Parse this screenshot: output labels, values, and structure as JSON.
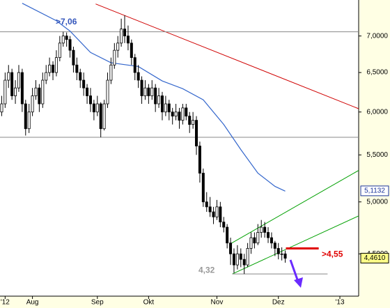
{
  "chart_data": {
    "type": "candlestick",
    "log_scale": true,
    "up_color": "#ffffff",
    "down_color": "#000000",
    "xlim": [
      -0.5,
      104.5
    ],
    "ylim": [
      4.13,
      7.53
    ],
    "xticks": [
      {
        "value": 1,
        "label": "'12"
      },
      {
        "value": 9,
        "label": "Aug"
      },
      {
        "value": 28,
        "label": "Sep"
      },
      {
        "value": 43,
        "label": "Okt"
      },
      {
        "value": 63,
        "label": "Nov"
      },
      {
        "value": 81,
        "label": "Dez"
      },
      {
        "value": 99,
        "label": "'13"
      }
    ],
    "yticks": [
      {
        "value": 4.5,
        "label": "4,5000"
      },
      {
        "value": 5,
        "label": "5,0000"
      },
      {
        "value": 5.5,
        "label": "5,5000"
      },
      {
        "value": 6,
        "label": "6,0000"
      },
      {
        "value": 6.5,
        "label": "6,5000"
      },
      {
        "value": 7,
        "label": "7,0000"
      }
    ],
    "ohlc": [
      [
        6.0,
        6.2,
        5.95,
        6.1
      ],
      [
        6.1,
        6.5,
        6.05,
        6.4
      ],
      [
        6.4,
        6.6,
        6.3,
        6.5
      ],
      [
        6.5,
        6.55,
        6.15,
        6.2
      ],
      [
        6.2,
        6.4,
        6.1,
        6.3
      ],
      [
        6.3,
        6.6,
        6.25,
        6.5
      ],
      [
        6.5,
        6.55,
        6.0,
        6.1
      ],
      [
        6.1,
        6.15,
        5.72,
        5.8
      ],
      [
        5.8,
        6.1,
        5.75,
        6.0
      ],
      [
        6.0,
        6.3,
        5.95,
        6.2
      ],
      [
        6.2,
        6.4,
        6.15,
        6.3
      ],
      [
        6.3,
        6.35,
        6.0,
        6.1
      ],
      [
        6.1,
        6.5,
        6.05,
        6.4
      ],
      [
        6.4,
        6.6,
        6.35,
        6.5
      ],
      [
        6.5,
        6.7,
        6.45,
        6.6
      ],
      [
        6.6,
        6.65,
        6.4,
        6.5
      ],
      [
        6.5,
        6.8,
        6.45,
        6.7
      ],
      [
        6.7,
        7.0,
        6.65,
        6.9
      ],
      [
        6.9,
        7.06,
        6.85,
        7.0
      ],
      [
        7.0,
        7.05,
        6.85,
        6.95
      ],
      [
        6.95,
        7.0,
        6.7,
        6.8
      ],
      [
        6.8,
        6.85,
        6.5,
        6.6
      ],
      [
        6.6,
        6.7,
        6.4,
        6.5
      ],
      [
        6.5,
        6.55,
        6.3,
        6.4
      ],
      [
        6.4,
        6.5,
        6.2,
        6.3
      ],
      [
        6.3,
        6.35,
        6.1,
        6.2
      ],
      [
        6.2,
        6.3,
        6.0,
        6.1
      ],
      [
        6.1,
        6.15,
        5.9,
        6.0
      ],
      [
        6.0,
        6.2,
        5.95,
        6.1
      ],
      [
        6.1,
        6.12,
        5.7,
        5.8
      ],
      [
        5.8,
        6.15,
        5.78,
        6.1
      ],
      [
        6.1,
        6.5,
        6.05,
        6.4
      ],
      [
        6.4,
        6.7,
        6.35,
        6.6
      ],
      [
        6.6,
        6.9,
        6.55,
        6.8
      ],
      [
        6.8,
        7.0,
        6.7,
        6.9
      ],
      [
        6.9,
        7.25,
        6.85,
        7.1
      ],
      [
        7.1,
        7.3,
        6.9,
        7.0
      ],
      [
        7.0,
        7.15,
        6.8,
        6.9
      ],
      [
        6.9,
        6.95,
        6.6,
        6.7
      ],
      [
        6.7,
        6.75,
        6.4,
        6.5
      ],
      [
        6.5,
        6.6,
        6.3,
        6.4
      ],
      [
        6.4,
        6.45,
        6.1,
        6.2
      ],
      [
        6.2,
        6.4,
        6.15,
        6.3
      ],
      [
        6.3,
        6.35,
        6.1,
        6.2
      ],
      [
        6.2,
        6.4,
        6.15,
        6.3
      ],
      [
        6.3,
        6.35,
        6.0,
        6.1
      ],
      [
        6.1,
        6.3,
        6.05,
        6.2
      ],
      [
        6.2,
        6.25,
        5.9,
        6.0
      ],
      [
        6.0,
        6.2,
        5.95,
        6.1
      ],
      [
        6.1,
        6.15,
        5.9,
        6.0
      ],
      [
        6.0,
        6.05,
        5.85,
        5.95
      ],
      [
        5.95,
        6.1,
        5.9,
        6.0
      ],
      [
        6.0,
        6.05,
        5.8,
        5.9
      ],
      [
        5.9,
        6.1,
        5.85,
        6.05
      ],
      [
        6.05,
        6.1,
        5.9,
        5.95
      ],
      [
        5.95,
        6.0,
        5.75,
        5.85
      ],
      [
        5.85,
        6.0,
        5.8,
        5.9
      ],
      [
        5.9,
        5.95,
        5.5,
        5.6
      ],
      [
        5.6,
        5.65,
        5.2,
        5.3
      ],
      [
        5.3,
        5.35,
        4.95,
        5.0
      ],
      [
        5.0,
        5.1,
        4.9,
        4.95
      ],
      [
        4.95,
        5.05,
        4.85,
        4.9
      ],
      [
        4.9,
        4.95,
        4.78,
        4.85
      ],
      [
        4.85,
        5.02,
        4.82,
        4.95
      ],
      [
        4.95,
        5.0,
        4.75,
        4.8
      ],
      [
        4.8,
        4.85,
        4.7,
        4.75
      ],
      [
        4.75,
        4.78,
        4.55,
        4.6
      ],
      [
        4.6,
        4.65,
        4.4,
        4.5
      ],
      [
        4.5,
        4.55,
        4.33,
        4.4
      ],
      [
        4.4,
        4.58,
        4.36,
        4.5
      ],
      [
        4.5,
        4.55,
        4.38,
        4.45
      ],
      [
        4.45,
        4.5,
        4.32,
        4.4
      ],
      [
        4.4,
        4.6,
        4.38,
        4.55
      ],
      [
        4.55,
        4.7,
        4.5,
        4.65
      ],
      [
        4.65,
        4.7,
        4.55,
        4.6
      ],
      [
        4.6,
        4.78,
        4.58,
        4.7
      ],
      [
        4.7,
        4.82,
        4.65,
        4.75
      ],
      [
        4.75,
        4.8,
        4.65,
        4.7
      ],
      [
        4.7,
        4.75,
        4.6,
        4.65
      ],
      [
        4.65,
        4.7,
        4.55,
        4.6
      ],
      [
        4.6,
        4.62,
        4.48,
        4.55
      ],
      [
        4.55,
        4.6,
        4.45,
        4.5
      ],
      [
        4.5,
        4.56,
        4.44,
        4.5
      ],
      [
        4.5,
        4.53,
        4.42,
        4.46
      ]
    ],
    "moving_average": {
      "color": "#3366cc",
      "x": [
        6,
        16,
        20,
        26,
        32,
        40,
        47,
        53,
        59,
        65,
        70,
        75,
        80,
        83
      ],
      "values": [
        7.48,
        7.22,
        7.07,
        6.77,
        6.63,
        6.58,
        6.39,
        6.29,
        6.15,
        5.85,
        5.56,
        5.3,
        5.16,
        5.11
      ]
    },
    "lines": [
      {
        "color": "#d00000",
        "x": [
          27.5,
          104.5
        ],
        "y": [
          7.47,
          6.04
        ]
      },
      {
        "color": "#00a000",
        "x": [
          66.8,
          104.5
        ],
        "y": [
          4.59,
          5.33
        ]
      },
      {
        "color": "#00a000",
        "x": [
          67.5,
          104.5
        ],
        "y": [
          4.32,
          4.86
        ]
      },
      {
        "color": "#888888",
        "x": [
          -0.5,
          104.5
        ],
        "y": [
          7.06,
          7.06
        ]
      },
      {
        "color": "#888888",
        "x": [
          -0.5,
          104.5
        ],
        "y": [
          5.7,
          5.7
        ]
      },
      {
        "color": "#888888",
        "x": [
          67.5,
          95.4
        ],
        "y": [
          4.32,
          4.32
        ]
      }
    ],
    "marker_lines": [
      {
        "color": "#e00000",
        "x": [
          83.2,
          92.8
        ],
        "y": [
          4.55,
          4.55
        ]
      }
    ],
    "annotations": [
      {
        "text": ">7,06",
        "value": 7.06,
        "color": "#3355bb"
      },
      {
        "text": ">4,55",
        "value": 4.55,
        "color": "#e00000"
      },
      {
        "text": "4,32",
        "value": 4.32,
        "color": "#999999"
      }
    ],
    "last_labels": [
      {
        "value": 5.1132,
        "label": "5,1132",
        "fill": "#ffffff",
        "color": "#1a3399"
      },
      {
        "value": 4.461,
        "label": "4,4610",
        "fill": "#ffff88",
        "color": "#000000"
      }
    ]
  }
}
